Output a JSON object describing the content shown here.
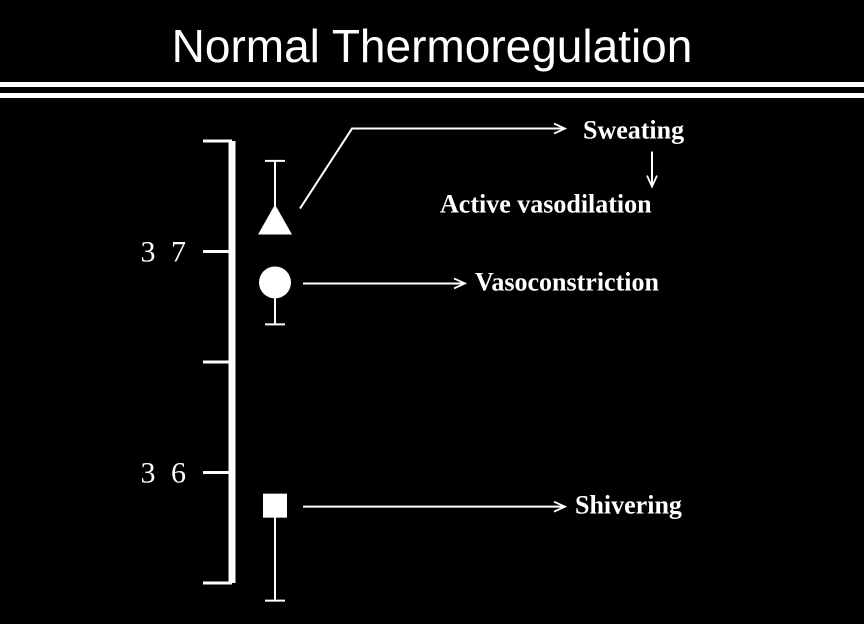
{
  "chart_data": {
    "type": "scatter",
    "title": "Normal Thermoregulation",
    "ylim": [
      35.5,
      37.5
    ],
    "yticks": [
      {
        "value": 36,
        "label": "3 6"
      },
      {
        "value": 37,
        "label": "3 7"
      }
    ],
    "minor_yticks": [
      35.5,
      36.5,
      37.5
    ],
    "color": "#ffffff",
    "points": [
      {
        "marker": "triangle",
        "value": 37.14,
        "error": 0.27,
        "error_direction": "up",
        "label": "Sweating",
        "sublabel": "Active vasodilation"
      },
      {
        "marker": "circle",
        "value": 36.86,
        "error": 0.19,
        "error_direction": "down",
        "label": "Vasoconstriction"
      },
      {
        "marker": "square",
        "value": 35.85,
        "error": 0.43,
        "error_direction": "down",
        "label": "Shivering"
      }
    ]
  }
}
